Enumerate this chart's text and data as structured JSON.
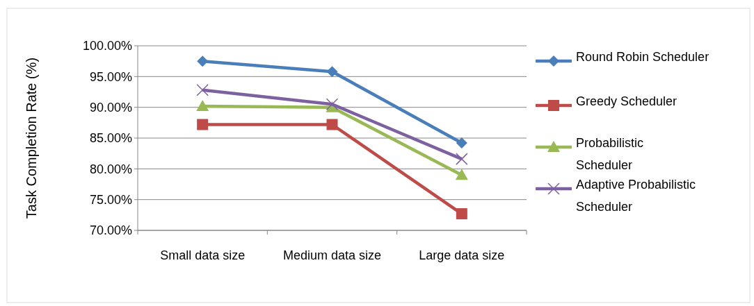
{
  "chart_data": {
    "type": "line",
    "ylabel": "Task Completion Rate (%)",
    "categories": [
      "Small data size",
      "Medium data size",
      "Large data size"
    ],
    "series": [
      {
        "name": "Round Robin Scheduler",
        "color": "#4a7ebb",
        "marker": "diamond",
        "values": [
          97.5,
          95.8,
          84.2
        ]
      },
      {
        "name": "Greedy Scheduler",
        "color": "#be4b48",
        "marker": "square",
        "values": [
          87.2,
          87.2,
          72.7
        ]
      },
      {
        "name": "Probabilistic Scheduler",
        "color": "#98b954",
        "marker": "triangle",
        "values": [
          90.2,
          90.0,
          79.0
        ]
      },
      {
        "name": "Adaptive Probabilistic Scheduler",
        "color": "#7d60a0",
        "marker": "cross",
        "values": [
          92.8,
          90.5,
          81.6
        ]
      }
    ],
    "ylim": [
      70,
      100
    ],
    "yticks": [
      {
        "value": 70,
        "label": "70.00%"
      },
      {
        "value": 75,
        "label": "75.00%"
      },
      {
        "value": 80,
        "label": "80.00%"
      },
      {
        "value": 85,
        "label": "85.00%"
      },
      {
        "value": 90,
        "label": "90.00%"
      },
      {
        "value": 95,
        "label": "95.00%"
      },
      {
        "value": 100,
        "label": "100.00%"
      }
    ],
    "grid": "y",
    "legend": "right"
  }
}
